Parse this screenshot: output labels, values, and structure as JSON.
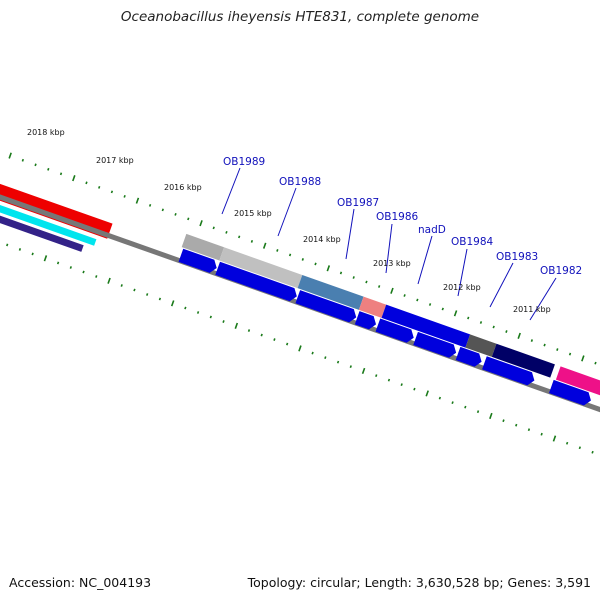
{
  "title": "Oceanobacillus iheyensis HTE831, complete genome",
  "footer": {
    "accession": "Accession: NC_004193",
    "summary": "Topology: circular; Length: 3,630,528 bp; Genes: 3,591"
  },
  "ruler": {
    "labels": [
      "2018 kbp",
      "2017 kbp",
      "2016 kbp",
      "2015 kbp",
      "2014 kbp",
      "2013 kbp",
      "2012 kbp",
      "2011 kbp"
    ]
  },
  "genes": [
    {
      "name": "OB1989"
    },
    {
      "name": "OB1988"
    },
    {
      "name": "OB1987"
    },
    {
      "name": "OB1986"
    },
    {
      "name": "nadD"
    },
    {
      "name": "OB1984"
    },
    {
      "name": "OB1983"
    },
    {
      "name": "OB1982"
    }
  ],
  "colors": {
    "backbone": "#777777",
    "cds": "#0000dd",
    "tick": "#1a7a1a",
    "label": "#1111bb",
    "feature_red": "#ee0000",
    "feature_cyan": "#00e5ee",
    "feature_navy": "#332288",
    "feature_gray": "#aaaaaa",
    "feature_steel": "#4a7fb0",
    "feature_salmon": "#ee8080",
    "feature_dark": "#555555",
    "feature_magenta": "#ee1188"
  }
}
